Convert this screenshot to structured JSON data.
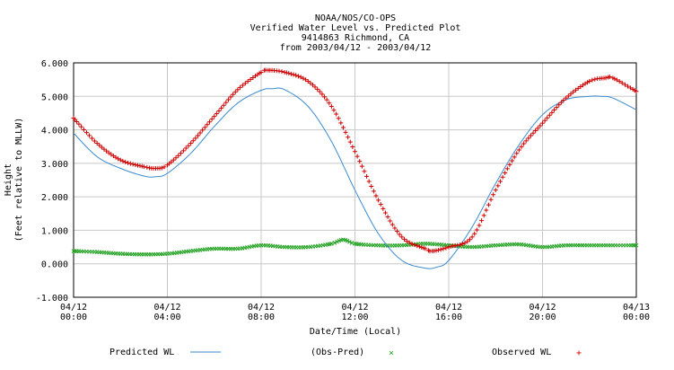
{
  "chart_data": {
    "type": "line",
    "title_lines": [
      "NOAA/NOS/CO-OPS",
      "Verified  Water Level vs. Predicted Plot",
      "9414863 Richmond, CA",
      "from 2003/04/12 - 2003/04/12"
    ],
    "xlabel": "Date/Time (Local)",
    "ylabel_lines": [
      "Height",
      "(Feet relative to MLLW)"
    ],
    "xlim": [
      0,
      24
    ],
    "ylim": [
      -1.0,
      6.0
    ],
    "x_unit": "hours from 2003/04/12 00:00",
    "y_ticks": [
      -1.0,
      0.0,
      1.0,
      2.0,
      3.0,
      4.0,
      5.0,
      6.0
    ],
    "y_tick_labels": [
      "-1.000",
      "0.000",
      "1.000",
      "2.000",
      "3.000",
      "4.000",
      "5.000",
      "6.000"
    ],
    "x_ticks": [
      {
        "x": 0,
        "date": "04/12",
        "time": "00:00"
      },
      {
        "x": 4,
        "date": "04/12",
        "time": "04:00"
      },
      {
        "x": 8,
        "date": "04/12",
        "time": "08:00"
      },
      {
        "x": 12,
        "date": "04/12",
        "time": "12:00"
      },
      {
        "x": 16,
        "date": "04/12",
        "time": "16:00"
      },
      {
        "x": 20,
        "date": "04/12",
        "time": "20:00"
      },
      {
        "x": 24,
        "date": "04/13",
        "time": "00:00"
      }
    ],
    "grid": true,
    "legend_position": "bottom",
    "series": [
      {
        "name": "Predicted WL",
        "style": "line",
        "color": "#3a8ad0",
        "x": [
          0,
          1,
          2,
          3,
          3.5,
          4,
          5,
          6,
          7,
          8,
          8.5,
          9,
          10,
          11,
          12,
          13,
          14,
          15,
          15.5,
          16,
          17,
          18,
          19,
          20,
          21,
          22,
          22.5,
          23,
          24
        ],
        "y": [
          3.9,
          3.2,
          2.85,
          2.62,
          2.6,
          2.7,
          3.3,
          4.1,
          4.8,
          5.18,
          5.23,
          5.2,
          4.7,
          3.65,
          2.2,
          0.9,
          0.1,
          -0.13,
          -0.1,
          0.1,
          1.1,
          2.4,
          3.55,
          4.45,
          4.9,
          5.0,
          5.0,
          4.95,
          4.6
        ]
      },
      {
        "name": "Observed WL",
        "style": "plus",
        "color": "#d00000",
        "x": [
          0,
          1,
          2,
          3,
          3.5,
          4,
          5,
          6,
          7,
          8,
          8.3,
          9,
          10,
          11,
          12,
          13,
          14,
          15,
          15.3,
          16,
          17,
          18,
          19,
          20,
          21,
          22,
          22.7,
          23,
          24
        ],
        "y": [
          4.35,
          3.6,
          3.1,
          2.9,
          2.85,
          2.95,
          3.6,
          4.4,
          5.2,
          5.72,
          5.78,
          5.72,
          5.45,
          4.7,
          3.35,
          1.9,
          0.8,
          0.45,
          0.38,
          0.5,
          0.8,
          2.2,
          3.4,
          4.2,
          4.95,
          5.45,
          5.55,
          5.55,
          5.15
        ]
      },
      {
        "name": "(Obs-Pred)",
        "style": "cross",
        "color": "#1ea01e",
        "x": [
          0,
          1,
          2,
          3,
          4,
          5,
          6,
          7,
          8,
          9,
          10,
          11,
          11.5,
          12,
          13,
          14,
          15,
          16,
          17,
          18,
          19,
          20,
          21,
          22,
          23,
          24
        ],
        "y": [
          0.38,
          0.35,
          0.3,
          0.28,
          0.3,
          0.38,
          0.45,
          0.45,
          0.55,
          0.5,
          0.5,
          0.6,
          0.72,
          0.6,
          0.55,
          0.55,
          0.6,
          0.55,
          0.5,
          0.55,
          0.58,
          0.5,
          0.55,
          0.55,
          0.55,
          0.55
        ]
      }
    ]
  },
  "legend": {
    "predicted_label": "Predicted WL",
    "diff_label": "(Obs-Pred)",
    "observed_label": "Observed WL"
  }
}
